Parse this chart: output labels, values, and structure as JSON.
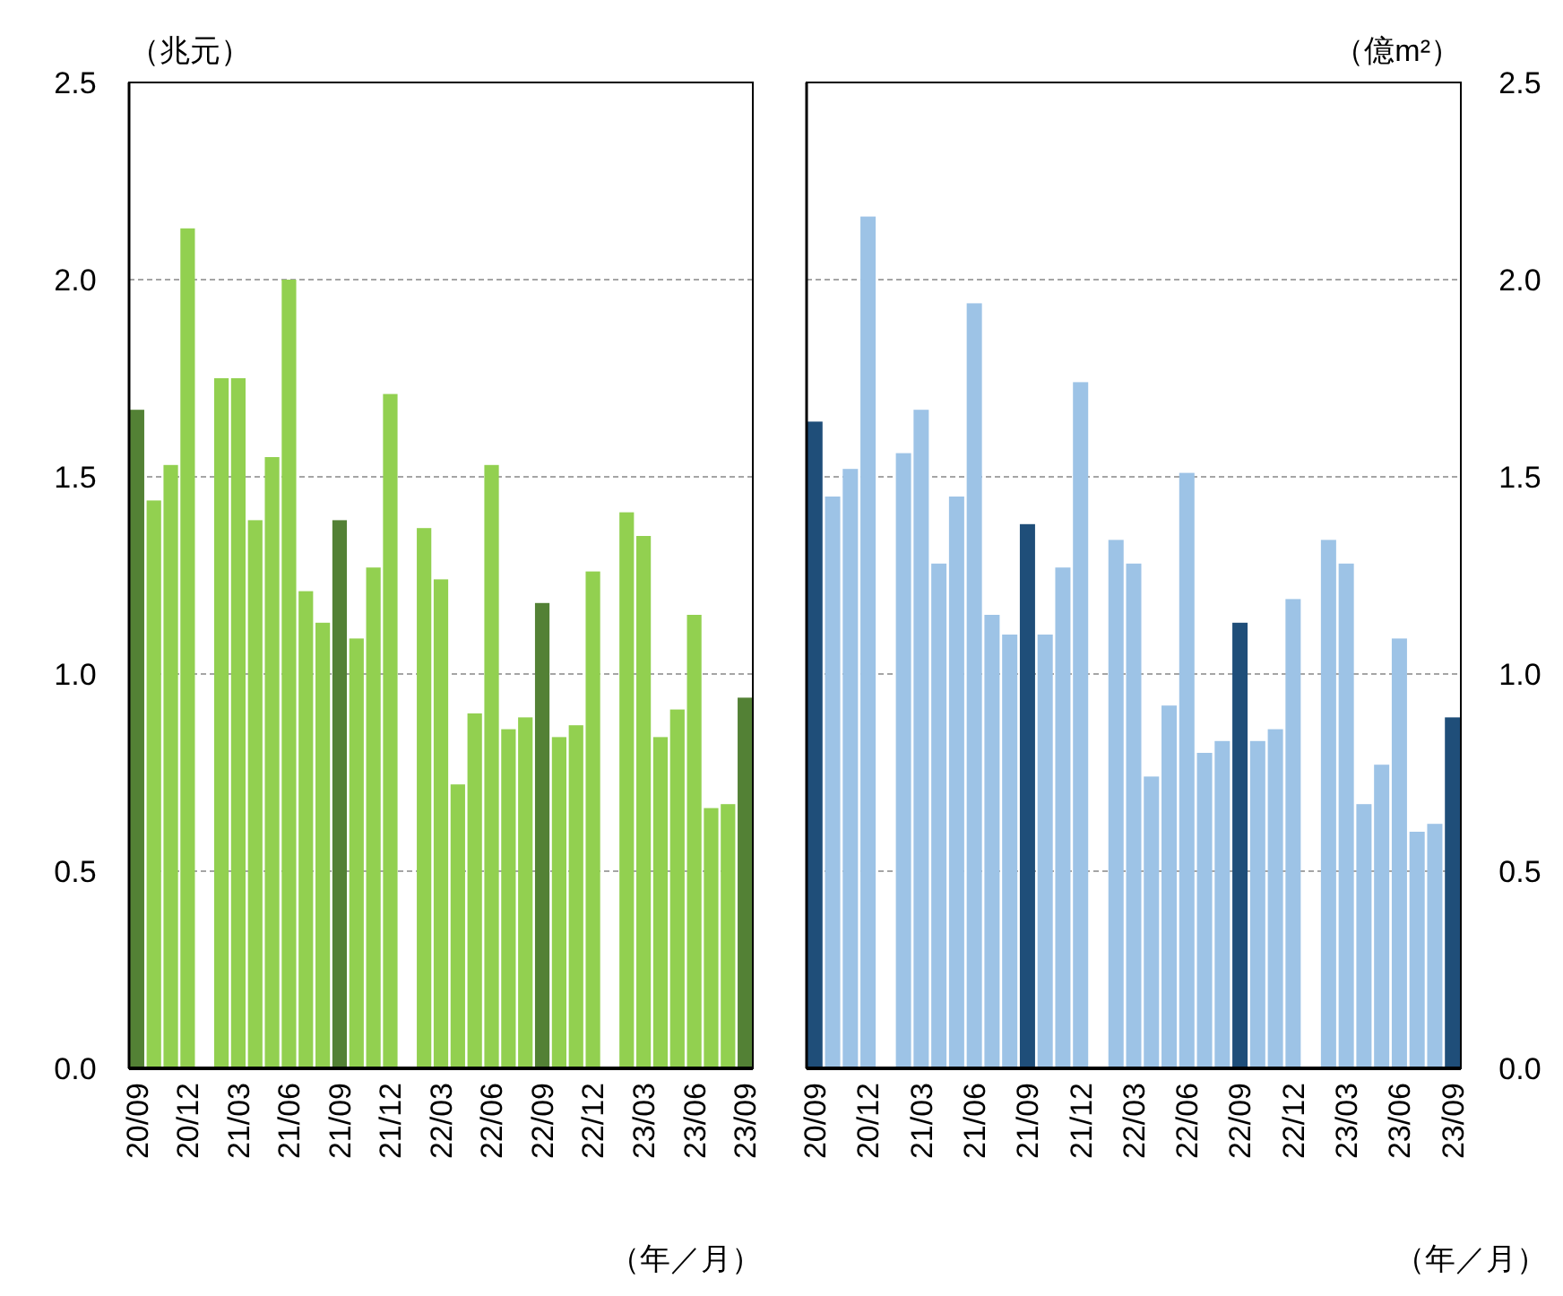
{
  "chart_data": [
    {
      "type": "bar",
      "ylabel": "（兆元）",
      "xlabel": "（年／月）",
      "categories": [
        "20/09",
        null,
        null,
        "20/12",
        null,
        null,
        "21/03",
        null,
        null,
        "21/06",
        null,
        null,
        "21/09",
        null,
        null,
        "21/12",
        null,
        null,
        "22/03",
        null,
        null,
        "22/06",
        null,
        null,
        "22/09",
        null,
        null,
        "22/12",
        null,
        null,
        "23/03",
        null,
        null,
        "23/06",
        null,
        null,
        "23/09"
      ],
      "series": [
        {
          "color": "#92d050",
          "colors": [
            "#538135",
            null,
            null,
            null,
            null,
            null,
            null,
            null,
            null,
            null,
            null,
            null,
            "#538135",
            null,
            null,
            null,
            null,
            null,
            null,
            null,
            null,
            null,
            null,
            null,
            "#538135",
            null,
            null,
            null,
            null,
            null,
            null,
            null,
            null,
            null,
            null,
            null,
            "#538135"
          ],
          "values": [
            1.67,
            1.44,
            1.53,
            2.13,
            null,
            1.75,
            1.75,
            1.39,
            1.55,
            2.0,
            1.21,
            1.13,
            1.39,
            1.09,
            1.27,
            1.71,
            null,
            1.37,
            1.24,
            0.72,
            0.9,
            1.53,
            0.86,
            0.89,
            1.18,
            0.84,
            0.87,
            1.26,
            null,
            1.41,
            1.35,
            0.84,
            0.91,
            1.15,
            0.66,
            0.67,
            0.94
          ]
        }
      ],
      "ylim": [
        0,
        2.5
      ],
      "yticks": [
        {
          "value": 0,
          "label": "0.0"
        },
        {
          "value": 0.5,
          "label": "0.5"
        },
        {
          "value": 1,
          "label": "1.0"
        },
        {
          "value": 1.5,
          "label": "1.5"
        },
        {
          "value": 2,
          "label": "2.0"
        },
        {
          "value": 2.5,
          "label": "2.5"
        }
      ],
      "grid": "y"
    },
    {
      "type": "bar",
      "ylabel": "（億m²）",
      "xlabel": "（年／月）",
      "categories": [
        "20/09",
        null,
        null,
        "20/12",
        null,
        null,
        "21/03",
        null,
        null,
        "21/06",
        null,
        null,
        "21/09",
        null,
        null,
        "21/12",
        null,
        null,
        "22/03",
        null,
        null,
        "22/06",
        null,
        null,
        "22/09",
        null,
        null,
        "22/12",
        null,
        null,
        "23/03",
        null,
        null,
        "23/06",
        null,
        null,
        "23/09"
      ],
      "series": [
        {
          "color": "#9dc3e6",
          "colors": [
            "#1f4e79",
            null,
            null,
            null,
            null,
            null,
            null,
            null,
            null,
            null,
            null,
            null,
            "#1f4e79",
            null,
            null,
            null,
            null,
            null,
            null,
            null,
            null,
            null,
            null,
            null,
            "#1f4e79",
            null,
            null,
            null,
            null,
            null,
            null,
            null,
            null,
            null,
            null,
            null,
            "#1f4e79"
          ],
          "values": [
            1.64,
            1.45,
            1.52,
            2.16,
            null,
            1.56,
            1.67,
            1.28,
            1.45,
            1.94,
            1.15,
            1.1,
            1.38,
            1.1,
            1.27,
            1.74,
            null,
            1.34,
            1.28,
            0.74,
            0.92,
            1.51,
            0.8,
            0.83,
            1.13,
            0.83,
            0.86,
            1.19,
            null,
            1.34,
            1.28,
            0.67,
            0.77,
            1.09,
            0.6,
            0.62,
            0.89
          ]
        }
      ],
      "ylim": [
        0,
        2.5
      ],
      "yticks": [
        {
          "value": 0,
          "label": "0.0"
        },
        {
          "value": 0.5,
          "label": "0.5"
        },
        {
          "value": 1,
          "label": "1.0"
        },
        {
          "value": 1.5,
          "label": "1.5"
        },
        {
          "value": 2,
          "label": "2.0"
        },
        {
          "value": 2.5,
          "label": "2.5"
        }
      ],
      "grid": "y"
    }
  ]
}
